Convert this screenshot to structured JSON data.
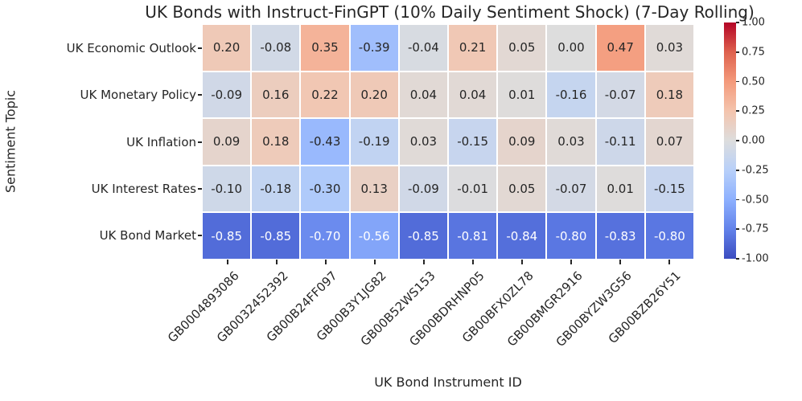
{
  "title": "UK Bonds with Instruct-FinGPT (10% Daily Sentiment Shock) (7-Day Rolling)",
  "chart_data": {
    "type": "heatmap",
    "title": "UK Bonds with Instruct-FinGPT (10% Daily Sentiment Shock) (7-Day Rolling)",
    "xlabel": "UK Bond Instrument ID",
    "ylabel": "Sentiment Topic",
    "x_categories": [
      "GB0004893086",
      "GB0032452392",
      "GB00B24FF097",
      "GB00B3Y1JG82",
      "GB00B52WS153",
      "GB00BDRHNP05",
      "GB00BFX0ZL78",
      "GB00BMGR2916",
      "GB00BYZW3G56",
      "GB00BZB26Y51"
    ],
    "y_categories": [
      "UK Economic Outlook",
      "UK Monetary Policy",
      "UK Inflation",
      "UK Interest Rates",
      "UK Bond Market"
    ],
    "series": [
      {
        "name": "UK Economic Outlook",
        "values": [
          0.2,
          -0.08,
          0.35,
          -0.39,
          -0.04,
          0.21,
          0.05,
          0.0,
          0.47,
          0.03
        ]
      },
      {
        "name": "UK Monetary Policy",
        "values": [
          -0.09,
          0.16,
          0.22,
          0.2,
          0.04,
          0.04,
          0.01,
          -0.16,
          -0.07,
          0.18
        ]
      },
      {
        "name": "UK Inflation",
        "values": [
          0.09,
          0.18,
          -0.43,
          -0.19,
          0.03,
          -0.15,
          0.09,
          0.03,
          -0.11,
          0.07
        ]
      },
      {
        "name": "UK Interest Rates",
        "values": [
          -0.1,
          -0.18,
          -0.3,
          0.13,
          -0.09,
          -0.01,
          0.05,
          -0.07,
          0.01,
          -0.15
        ]
      },
      {
        "name": "UK Bond Market",
        "values": [
          -0.85,
          -0.85,
          -0.7,
          -0.56,
          -0.85,
          -0.81,
          -0.84,
          -0.8,
          -0.83,
          -0.8
        ]
      }
    ],
    "vmin": -1,
    "vmax": 1,
    "colormap": "coolwarm",
    "colormap_anchors": [
      {
        "t": 0.0,
        "color": "#3b4cc0"
      },
      {
        "t": 0.125,
        "color": "#6282ea"
      },
      {
        "t": 0.25,
        "color": "#8db0fe"
      },
      {
        "t": 0.375,
        "color": "#b8d0f9"
      },
      {
        "t": 0.5,
        "color": "#dddddd"
      },
      {
        "t": 0.625,
        "color": "#f4c4ad"
      },
      {
        "t": 0.75,
        "color": "#f49a7b"
      },
      {
        "t": 0.875,
        "color": "#de614d"
      },
      {
        "t": 1.0,
        "color": "#b40426"
      }
    ],
    "colorbar_ticks": [
      {
        "value": 1.0,
        "label": "1.00"
      },
      {
        "value": 0.75,
        "label": "0.75"
      },
      {
        "value": 0.5,
        "label": "0.50"
      },
      {
        "value": 0.25,
        "label": "0.25"
      },
      {
        "value": 0.0,
        "label": "0.00"
      },
      {
        "value": -0.25,
        "label": "-0.25"
      },
      {
        "value": -0.5,
        "label": "-0.50"
      },
      {
        "value": -0.75,
        "label": "-0.75"
      },
      {
        "value": -1.0,
        "label": "-1.00"
      }
    ],
    "legend_position": "right-colorbar",
    "grid": "white-cell-borders",
    "annotation_text_dark": "#262626",
    "annotation_text_light": "#ffffff",
    "axis_text_color": "#262626",
    "background_color": "#ffffff"
  }
}
